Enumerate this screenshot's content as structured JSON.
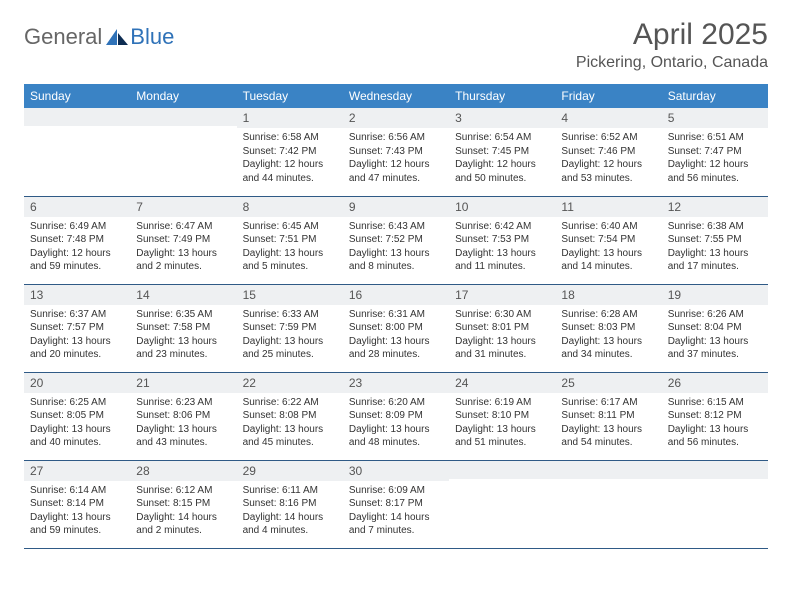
{
  "brand": {
    "part1": "General",
    "part2": "Blue"
  },
  "header": {
    "title": "April 2025",
    "location": "Pickering, Ontario, Canada"
  },
  "colors": {
    "header_bg": "#3a83c5",
    "header_text": "#ffffff",
    "daynum_bg": "#eef0f2",
    "row_border": "#2f5a86",
    "brand_blue": "#2f72b8",
    "text": "#333333",
    "page_bg": "#ffffff"
  },
  "weekdays": [
    "Sunday",
    "Monday",
    "Tuesday",
    "Wednesday",
    "Thursday",
    "Friday",
    "Saturday"
  ],
  "grid": [
    [
      {
        "n": "",
        "sr": "",
        "ss": "",
        "dl": ""
      },
      {
        "n": "",
        "sr": "",
        "ss": "",
        "dl": ""
      },
      {
        "n": "1",
        "sr": "Sunrise: 6:58 AM",
        "ss": "Sunset: 7:42 PM",
        "dl": "Daylight: 12 hours and 44 minutes."
      },
      {
        "n": "2",
        "sr": "Sunrise: 6:56 AM",
        "ss": "Sunset: 7:43 PM",
        "dl": "Daylight: 12 hours and 47 minutes."
      },
      {
        "n": "3",
        "sr": "Sunrise: 6:54 AM",
        "ss": "Sunset: 7:45 PM",
        "dl": "Daylight: 12 hours and 50 minutes."
      },
      {
        "n": "4",
        "sr": "Sunrise: 6:52 AM",
        "ss": "Sunset: 7:46 PM",
        "dl": "Daylight: 12 hours and 53 minutes."
      },
      {
        "n": "5",
        "sr": "Sunrise: 6:51 AM",
        "ss": "Sunset: 7:47 PM",
        "dl": "Daylight: 12 hours and 56 minutes."
      }
    ],
    [
      {
        "n": "6",
        "sr": "Sunrise: 6:49 AM",
        "ss": "Sunset: 7:48 PM",
        "dl": "Daylight: 12 hours and 59 minutes."
      },
      {
        "n": "7",
        "sr": "Sunrise: 6:47 AM",
        "ss": "Sunset: 7:49 PM",
        "dl": "Daylight: 13 hours and 2 minutes."
      },
      {
        "n": "8",
        "sr": "Sunrise: 6:45 AM",
        "ss": "Sunset: 7:51 PM",
        "dl": "Daylight: 13 hours and 5 minutes."
      },
      {
        "n": "9",
        "sr": "Sunrise: 6:43 AM",
        "ss": "Sunset: 7:52 PM",
        "dl": "Daylight: 13 hours and 8 minutes."
      },
      {
        "n": "10",
        "sr": "Sunrise: 6:42 AM",
        "ss": "Sunset: 7:53 PM",
        "dl": "Daylight: 13 hours and 11 minutes."
      },
      {
        "n": "11",
        "sr": "Sunrise: 6:40 AM",
        "ss": "Sunset: 7:54 PM",
        "dl": "Daylight: 13 hours and 14 minutes."
      },
      {
        "n": "12",
        "sr": "Sunrise: 6:38 AM",
        "ss": "Sunset: 7:55 PM",
        "dl": "Daylight: 13 hours and 17 minutes."
      }
    ],
    [
      {
        "n": "13",
        "sr": "Sunrise: 6:37 AM",
        "ss": "Sunset: 7:57 PM",
        "dl": "Daylight: 13 hours and 20 minutes."
      },
      {
        "n": "14",
        "sr": "Sunrise: 6:35 AM",
        "ss": "Sunset: 7:58 PM",
        "dl": "Daylight: 13 hours and 23 minutes."
      },
      {
        "n": "15",
        "sr": "Sunrise: 6:33 AM",
        "ss": "Sunset: 7:59 PM",
        "dl": "Daylight: 13 hours and 25 minutes."
      },
      {
        "n": "16",
        "sr": "Sunrise: 6:31 AM",
        "ss": "Sunset: 8:00 PM",
        "dl": "Daylight: 13 hours and 28 minutes."
      },
      {
        "n": "17",
        "sr": "Sunrise: 6:30 AM",
        "ss": "Sunset: 8:01 PM",
        "dl": "Daylight: 13 hours and 31 minutes."
      },
      {
        "n": "18",
        "sr": "Sunrise: 6:28 AM",
        "ss": "Sunset: 8:03 PM",
        "dl": "Daylight: 13 hours and 34 minutes."
      },
      {
        "n": "19",
        "sr": "Sunrise: 6:26 AM",
        "ss": "Sunset: 8:04 PM",
        "dl": "Daylight: 13 hours and 37 minutes."
      }
    ],
    [
      {
        "n": "20",
        "sr": "Sunrise: 6:25 AM",
        "ss": "Sunset: 8:05 PM",
        "dl": "Daylight: 13 hours and 40 minutes."
      },
      {
        "n": "21",
        "sr": "Sunrise: 6:23 AM",
        "ss": "Sunset: 8:06 PM",
        "dl": "Daylight: 13 hours and 43 minutes."
      },
      {
        "n": "22",
        "sr": "Sunrise: 6:22 AM",
        "ss": "Sunset: 8:08 PM",
        "dl": "Daylight: 13 hours and 45 minutes."
      },
      {
        "n": "23",
        "sr": "Sunrise: 6:20 AM",
        "ss": "Sunset: 8:09 PM",
        "dl": "Daylight: 13 hours and 48 minutes."
      },
      {
        "n": "24",
        "sr": "Sunrise: 6:19 AM",
        "ss": "Sunset: 8:10 PM",
        "dl": "Daylight: 13 hours and 51 minutes."
      },
      {
        "n": "25",
        "sr": "Sunrise: 6:17 AM",
        "ss": "Sunset: 8:11 PM",
        "dl": "Daylight: 13 hours and 54 minutes."
      },
      {
        "n": "26",
        "sr": "Sunrise: 6:15 AM",
        "ss": "Sunset: 8:12 PM",
        "dl": "Daylight: 13 hours and 56 minutes."
      }
    ],
    [
      {
        "n": "27",
        "sr": "Sunrise: 6:14 AM",
        "ss": "Sunset: 8:14 PM",
        "dl": "Daylight: 13 hours and 59 minutes."
      },
      {
        "n": "28",
        "sr": "Sunrise: 6:12 AM",
        "ss": "Sunset: 8:15 PM",
        "dl": "Daylight: 14 hours and 2 minutes."
      },
      {
        "n": "29",
        "sr": "Sunrise: 6:11 AM",
        "ss": "Sunset: 8:16 PM",
        "dl": "Daylight: 14 hours and 4 minutes."
      },
      {
        "n": "30",
        "sr": "Sunrise: 6:09 AM",
        "ss": "Sunset: 8:17 PM",
        "dl": "Daylight: 14 hours and 7 minutes."
      },
      {
        "n": "",
        "sr": "",
        "ss": "",
        "dl": ""
      },
      {
        "n": "",
        "sr": "",
        "ss": "",
        "dl": ""
      },
      {
        "n": "",
        "sr": "",
        "ss": "",
        "dl": ""
      }
    ]
  ]
}
